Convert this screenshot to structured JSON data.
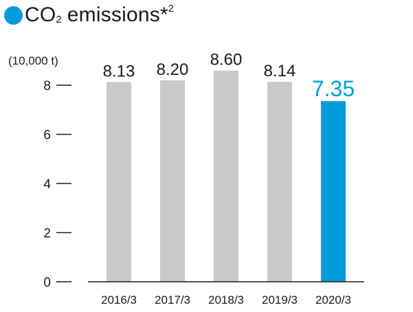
{
  "title": {
    "main": "CO",
    "subscript": "2",
    "rest": "emissions",
    "note": "*",
    "note_num": "2"
  },
  "chart_data": {
    "type": "bar",
    "unit_label": "(10,000 t)",
    "categories": [
      "2016/3",
      "2017/3",
      "2018/3",
      "2019/3",
      "2020/3"
    ],
    "values": [
      8.13,
      8.2,
      8.6,
      8.14,
      7.35
    ],
    "value_labels": [
      "8.13",
      "8.20",
      "8.60",
      "8.14",
      "7.35"
    ],
    "highlight_index": 4,
    "yticks": [
      0,
      2,
      4,
      6,
      8
    ],
    "ylim": [
      0,
      9
    ],
    "colors": {
      "bar": "#c8c9ca",
      "highlight": "#009bdc",
      "text": "#1a1a1a",
      "axis": "#1a1a1a"
    },
    "grid": false,
    "legend": "none"
  }
}
